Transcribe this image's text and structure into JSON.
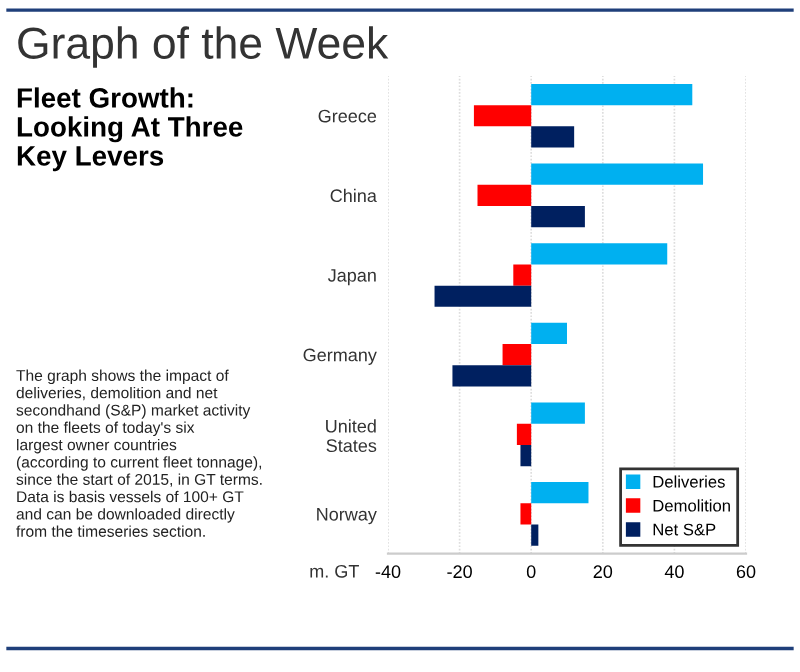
{
  "chart_data": {
    "type": "bar",
    "orientation": "horizontal",
    "title": "Graph of the Week",
    "subtitle": "Fleet Growth:\nLooking At Three\nKey Levers",
    "xlabel": "m. GT",
    "categories": [
      "Greece",
      "China",
      "Japan",
      "Germany",
      "United\nStates",
      "Norway"
    ],
    "series": [
      {
        "name": "Deliveries",
        "color": "#00b0f0",
        "values": [
          45,
          48,
          38,
          10,
          15,
          16
        ]
      },
      {
        "name": "Demolition",
        "color": "#ff0000",
        "values": [
          -16,
          -15,
          -5,
          -8,
          -4,
          -3
        ]
      },
      {
        "name": "Net S&P",
        "color": "#002060",
        "values": [
          12,
          15,
          -27,
          -22,
          -3,
          2
        ]
      }
    ],
    "xlim": [
      -40,
      60
    ],
    "xticks": [
      -40,
      -20,
      0,
      20,
      40,
      60
    ],
    "grid": "x",
    "legend": "bottom right",
    "annotations": [
      "The graph shows the impact of\ndeliveries, demolition and net\nsecondhand (S&P) market activity\non the fleets of today's six\nlargest owner countries\n(according to current fleet tonnage),\nsince the start of 2015, in GT terms.\nData is basis vessels of 100+ GT\nand can be downloaded directly\nfrom the timeseries section."
    ]
  }
}
